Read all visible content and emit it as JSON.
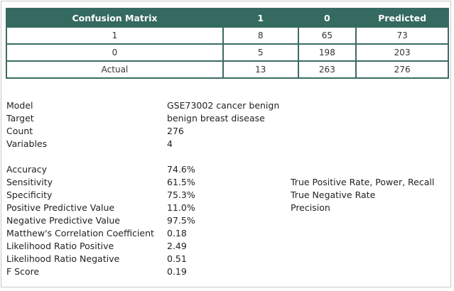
{
  "confusion_matrix": {
    "headers": [
      "Confusion Matrix",
      "1",
      "0",
      "Predicted"
    ],
    "rows": [
      [
        "1",
        "8",
        "65",
        "73"
      ],
      [
        "0",
        "5",
        "198",
        "203"
      ],
      [
        "Actual",
        "13",
        "263",
        "276"
      ]
    ]
  },
  "info": [
    {
      "label": "Model",
      "value": "GSE73002 cancer benign"
    },
    {
      "label": "Target",
      "value": "benign breast disease"
    },
    {
      "label": "Count",
      "value": "276"
    },
    {
      "label": "Variables",
      "value": "4"
    }
  ],
  "stats": [
    {
      "label": "Accuracy",
      "value": "74.6%",
      "note": ""
    },
    {
      "label": "Sensitivity",
      "value": "61.5%",
      "note": "True Positive Rate, Power, Recall"
    },
    {
      "label": "Specificity",
      "value": "75.3%",
      "note": "True Negative Rate"
    },
    {
      "label": "Positive Predictive Value",
      "value": "11.0%",
      "note": "Precision"
    },
    {
      "label": "Negative Predictive Value",
      "value": "97.5%",
      "note": ""
    },
    {
      "label": "Matthew's Correlation Coefficient",
      "value": "0.18",
      "note": ""
    },
    {
      "label": "Likelihood Ratio Positive",
      "value": "2.49",
      "note": ""
    },
    {
      "label": "Likelihood Ratio Negative",
      "value": "0.51",
      "note": ""
    },
    {
      "label": "F Score",
      "value": "0.19",
      "note": ""
    }
  ]
}
